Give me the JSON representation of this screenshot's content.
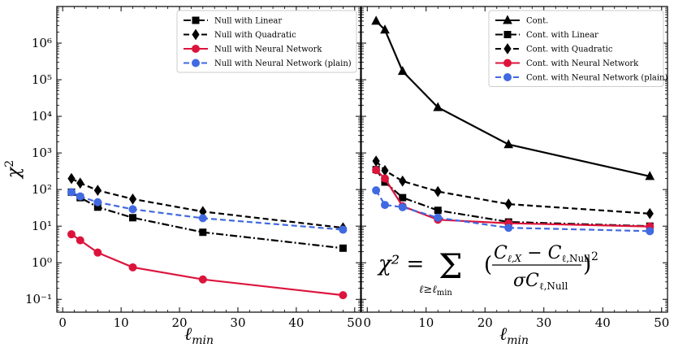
{
  "chart_data": [
    {
      "type": "line",
      "panel": "left",
      "yscale": "log",
      "xlabel": "ℓ",
      "xlabel_sub": "min",
      "ylabel": "χ",
      "ylabel_sup": "2",
      "xlim": [
        -1,
        51
      ],
      "ylim_exp": [
        -1.35,
        7.0
      ],
      "xticks": [
        0,
        10,
        20,
        30,
        40,
        50
      ],
      "yticks_exp": [
        -1,
        0,
        1,
        2,
        3,
        4,
        5,
        6
      ],
      "x": [
        1.5,
        3,
        6,
        12,
        24,
        48
      ],
      "legend_position": "top-right",
      "series": [
        {
          "name": "Null with Linear",
          "color": "#000000",
          "dash": "dashdot",
          "marker": "square",
          "values": [
            85,
            60,
            33,
            17,
            6.8,
            2.5
          ]
        },
        {
          "name": "Null with Quadratic",
          "color": "#000000",
          "dash": "dashed",
          "marker": "diamond",
          "values": [
            200,
            150,
            95,
            55,
            25,
            9
          ]
        },
        {
          "name": "Null with Neural Network",
          "color": "#dc143c",
          "dash": "solid",
          "marker": "circle",
          "values": [
            6,
            4.1,
            1.9,
            0.75,
            0.35,
            0.13
          ]
        },
        {
          "name": "Null with Neural Network (plain)",
          "color": "#4169e1",
          "dash": "dashed",
          "marker": "circle",
          "values": [
            85,
            65,
            45,
            29,
            16.5,
            8
          ]
        }
      ]
    },
    {
      "type": "line",
      "panel": "right",
      "yscale": "log",
      "xlabel": "ℓ",
      "xlabel_sub": "min",
      "xlim": [
        -1,
        51
      ],
      "ylim_exp": [
        -1.35,
        7.0
      ],
      "xticks": [
        0,
        10,
        20,
        30,
        40,
        50
      ],
      "yticks_exp": [
        -1,
        0,
        1,
        2,
        3,
        4,
        5,
        6
      ],
      "x": [
        1.5,
        3,
        6,
        12,
        24,
        48
      ],
      "legend_position": "top-right",
      "series": [
        {
          "name": "Cont.",
          "color": "#000000",
          "dash": "solid",
          "marker": "triangle",
          "values": [
            4000000,
            2300000,
            170000,
            17500,
            1700,
            230
          ]
        },
        {
          "name": "Cont. with Linear",
          "color": "#000000",
          "dash": "dashdot",
          "marker": "square",
          "values": [
            350,
            160,
            60,
            27,
            13,
            10
          ]
        },
        {
          "name": "Cont. with Quadratic",
          "color": "#000000",
          "dash": "dashed",
          "marker": "diamond",
          "values": [
            600,
            330,
            170,
            88,
            40,
            22
          ]
        },
        {
          "name": "Cont. with Neural Network",
          "color": "#dc143c",
          "dash": "solid",
          "marker": "circle",
          "values": [
            340,
            200,
            35,
            15,
            12,
            9.8
          ]
        },
        {
          "name": "Cont. with Neural Network (plain)",
          "color": "#4169e1",
          "dash": "dashed",
          "marker": "circle",
          "values": [
            95,
            38,
            33,
            17,
            9,
            7.3
          ]
        }
      ],
      "annotation": {
        "lhs": "χ² =",
        "sum_symbol": "Σ",
        "sum_index": "ℓ≥ℓ",
        "sum_index_sub": "min",
        "numerator": "C",
        "numerator_sub": "ℓ,X",
        "minus": "−",
        "numerator2": "C",
        "numerator2_sub": "ℓ,Null",
        "denominator": "σC",
        "denominator_sub": "ℓ,Null",
        "open_paren": "(",
        "close_paren": ")",
        "power": "2"
      }
    }
  ]
}
